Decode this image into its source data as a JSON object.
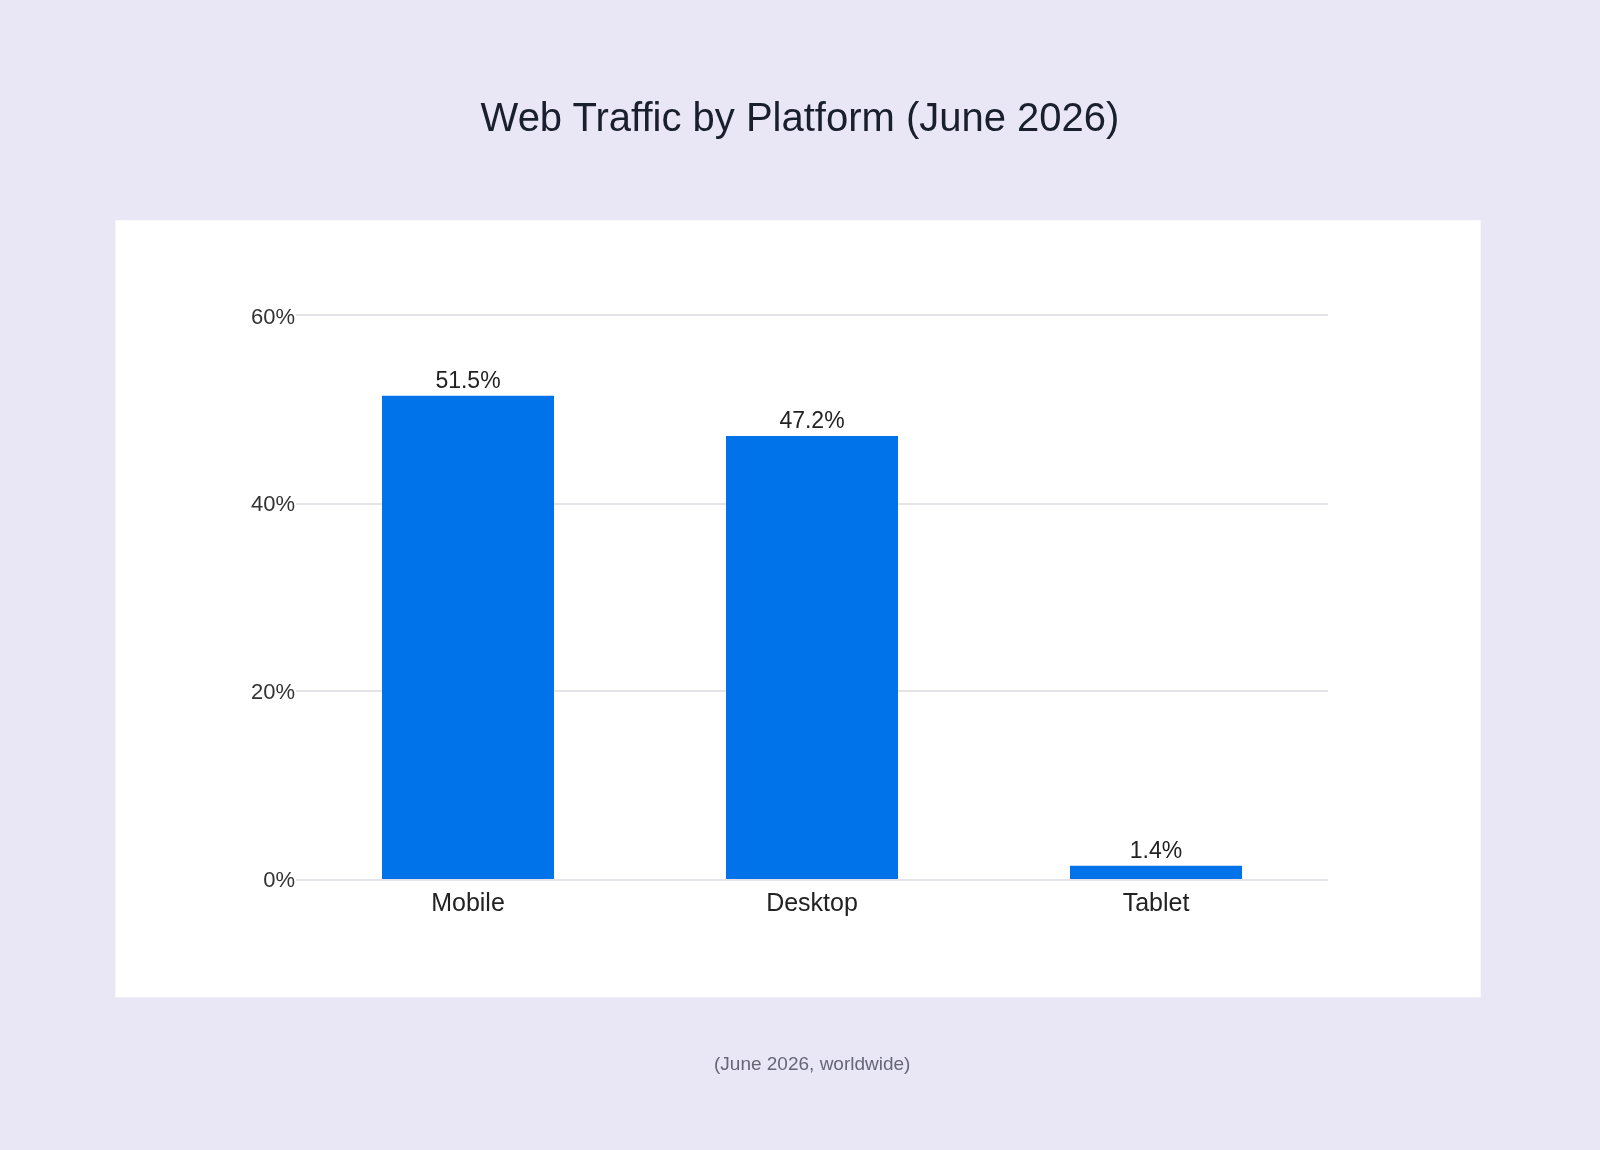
{
  "chart_data": {
    "type": "bar",
    "title": "Web Traffic by Platform (June 2026)",
    "categories": [
      "Mobile",
      "Desktop",
      "Tablet"
    ],
    "values": [
      51.5,
      47.2,
      1.4
    ],
    "value_labels": [
      "51.5%",
      "47.2%",
      "1.4%"
    ],
    "color": "#0073ea",
    "ylim": [
      0,
      60
    ],
    "yticks": [
      {
        "value": 0,
        "label": "0%"
      },
      {
        "value": 20,
        "label": "20%"
      },
      {
        "value": 40,
        "label": "40%"
      },
      {
        "value": 60,
        "label": "60%"
      }
    ],
    "grid": "y",
    "legend": false,
    "annotations": [
      "(June 2026, worldwide)"
    ]
  }
}
